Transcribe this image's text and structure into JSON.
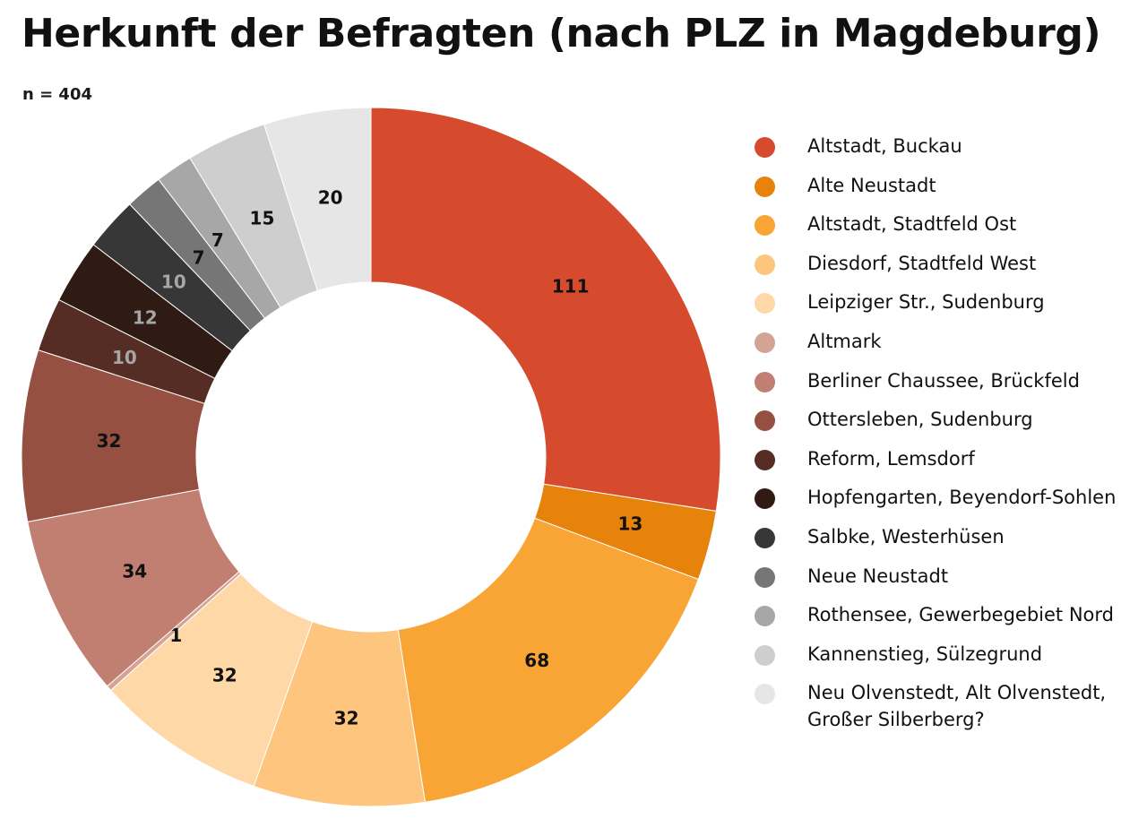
{
  "chart_data": {
    "type": "pie",
    "donut": true,
    "title": "Herkunft der Befragten (nach PLZ in Magdeburg)",
    "subtitle": "n = 404",
    "categories": [
      "Altstadt, Buckau",
      "Alte Neustadt",
      "Altstadt, Stadtfeld Ost",
      "Diesdorf, Stadtfeld West",
      "Leipziger Str., Sudenburg",
      "Altmark",
      "Berliner Chaussee, Brückfeld",
      "Ottersleben, Sudenburg",
      "Reform, Lemsdorf",
      "Hopfengarten, Beyendorf-Sohlen",
      "Salbke, Westerhüsen",
      "Neue Neustadt",
      "Rothensee, Gewerbegebiet Nord",
      "Kannenstieg, Sülzegrund",
      "Neu Olvenstedt, Alt Olvenstedt,\nGroßer Silberberg?"
    ],
    "values": [
      111,
      13,
      68,
      32,
      32,
      1,
      34,
      32,
      10,
      12,
      10,
      7,
      7,
      15,
      20
    ],
    "data_labels": [
      "111",
      "13",
      "68",
      "32",
      "32",
      "1",
      "34",
      "32",
      "10",
      "12",
      "10",
      "7",
      "7",
      "15",
      "20"
    ],
    "colors": [
      "#d64b2d",
      "#e7820a",
      "#f9a535",
      "#fec57e",
      "#fed8a6",
      "#d3a394",
      "#c17f72",
      "#955042",
      "#552d25",
      "#2f1a14",
      "#373737",
      "#767676",
      "#a7a7a7",
      "#cecece",
      "#e6e6e6"
    ],
    "label_colors": [
      "#111111",
      "#111111",
      "#111111",
      "#111111",
      "#111111",
      "#111111",
      "#111111",
      "#111111",
      "#a6a6a6",
      "#a6a6a6",
      "#a6a6a6",
      "#111111",
      "#111111",
      "#111111",
      "#111111"
    ],
    "legend_position": "right",
    "start_angle": "top, clockwise"
  }
}
